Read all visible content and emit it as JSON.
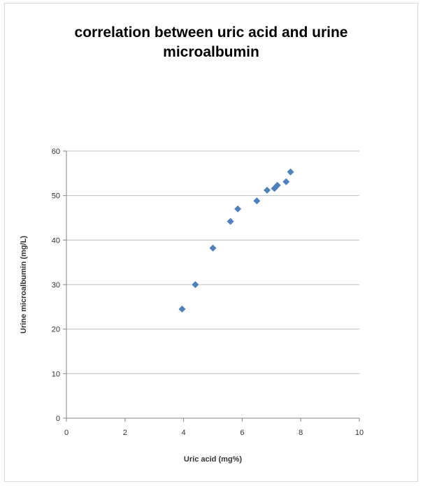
{
  "chart_data": {
    "type": "scatter",
    "title": "correlation between uric acid and urine\nmicroalbumin",
    "xlabel": "Uric acid (mg%)",
    "ylabel": "Urine microalbumin (mg/L)",
    "xlim": [
      0,
      10
    ],
    "ylim": [
      0,
      60
    ],
    "xticks": [
      0,
      2,
      4,
      6,
      8,
      10
    ],
    "yticks": [
      0,
      10,
      20,
      30,
      40,
      50,
      60
    ],
    "grid": "horizontal",
    "legend": "none",
    "marker": "diamond",
    "marker_color": "#4f81bd",
    "series": [
      {
        "points": [
          {
            "x": 3.95,
            "y": 24.5
          },
          {
            "x": 4.4,
            "y": 30.0
          },
          {
            "x": 5.0,
            "y": 38.2
          },
          {
            "x": 5.6,
            "y": 44.2
          },
          {
            "x": 5.85,
            "y": 47.0
          },
          {
            "x": 6.5,
            "y": 48.8
          },
          {
            "x": 6.85,
            "y": 51.2
          },
          {
            "x": 7.1,
            "y": 51.6
          },
          {
            "x": 7.2,
            "y": 52.3
          },
          {
            "x": 7.5,
            "y": 53.1
          },
          {
            "x": 7.65,
            "y": 55.3
          }
        ]
      }
    ]
  }
}
